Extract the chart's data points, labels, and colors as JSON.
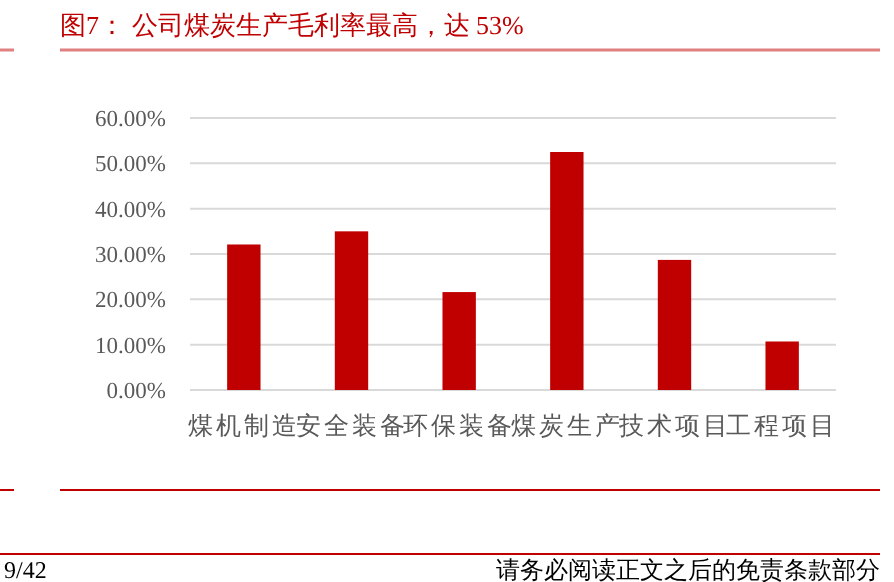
{
  "chart_data": {
    "type": "bar",
    "title": "图7：  公司煤炭生产毛利率最高，达 53%",
    "categories": [
      "煤机制造",
      "安全装备",
      "环保装备",
      "煤炭生产",
      "技术项目",
      "工程项目"
    ],
    "values": [
      32.1,
      35.0,
      21.6,
      52.5,
      28.7,
      10.7
    ],
    "color": "#c00000",
    "ylim": [
      0,
      60
    ],
    "yticks": [
      {
        "value": 0,
        "label": "0.00%"
      },
      {
        "value": 10,
        "label": "10.00%"
      },
      {
        "value": 20,
        "label": "20.00%"
      },
      {
        "value": 30,
        "label": "30.00%"
      },
      {
        "value": 40,
        "label": "40.00%"
      },
      {
        "value": 50,
        "label": "50.00%"
      },
      {
        "value": 60,
        "label": "60.00%"
      }
    ],
    "grid": "y",
    "annotations": [
      "9/42",
      "请务必阅读正文之后的免责条款部分"
    ]
  }
}
